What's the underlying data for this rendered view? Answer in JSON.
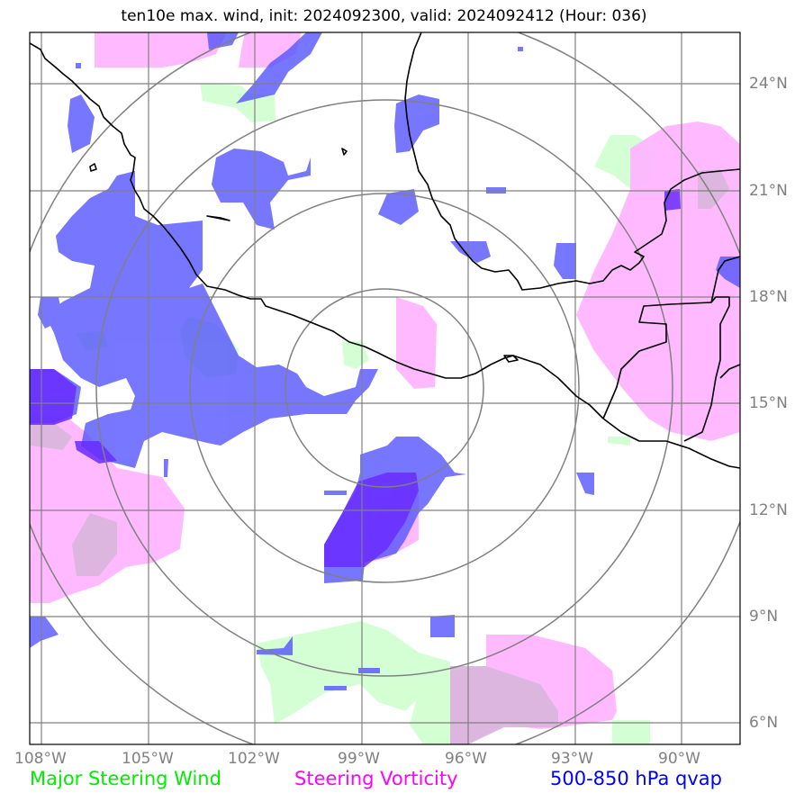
{
  "title": "ten10e max. wind, init: 2024092300, valid: 2024092412 (Hour: 036)",
  "legend": {
    "major_steering_wind": "Major Steering Wind",
    "steering_vorticity": "Steering Vorticity",
    "qvap": "500-850 hPa qvap"
  },
  "colors": {
    "major_steering_wind": "#ccffcc",
    "steering_vorticity": "#ffb3ff",
    "qvap": "#5555ff",
    "qvap_dark": "#6a2cff",
    "gridlines": "#808080",
    "coastline": "#000000"
  },
  "axes": {
    "latitude_labels": [
      "24°N",
      "21°N",
      "18°N",
      "15°N",
      "12°N",
      "9°N",
      "6°N"
    ],
    "longitude_labels": [
      "108°W",
      "105°W",
      "102°W",
      "99°W",
      "96°W",
      "93°W",
      "90°W"
    ]
  },
  "range_rings": {
    "count": 4,
    "center": "99.5°W, 15.5°N"
  }
}
